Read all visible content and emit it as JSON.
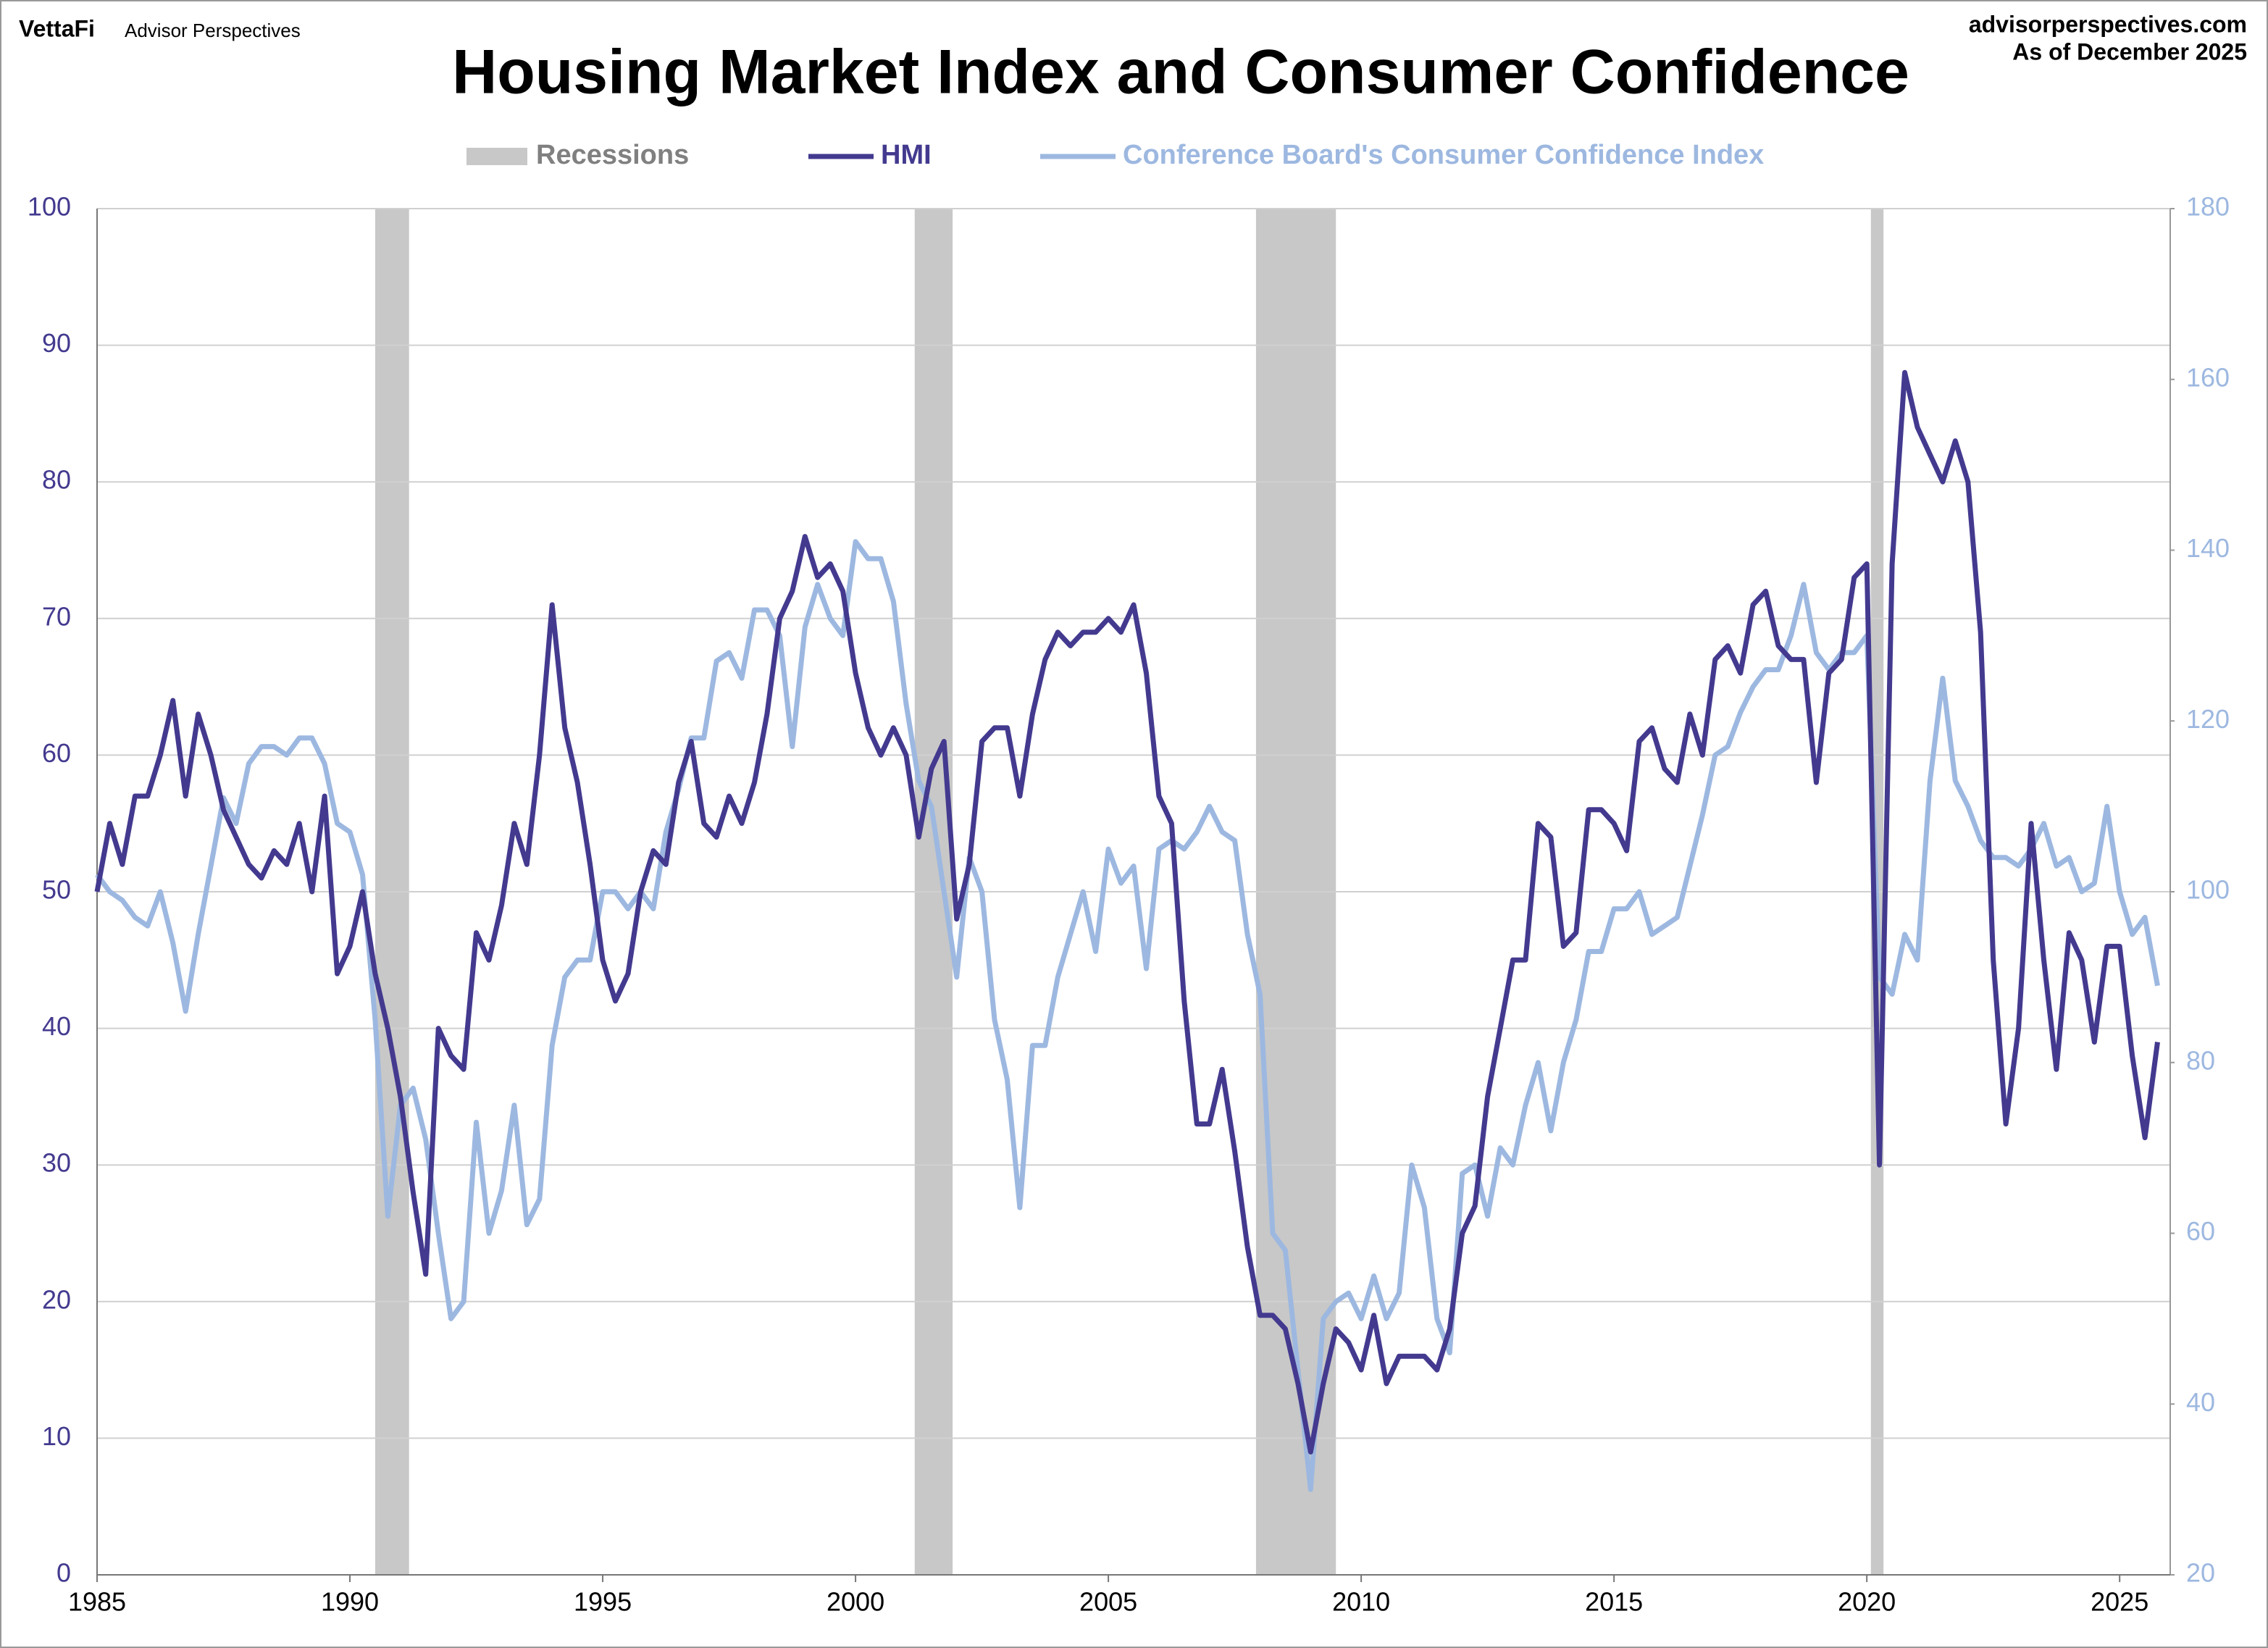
{
  "header": {
    "brand": "VettaFi",
    "sub_brand": "Advisor Perspectives",
    "site": "advisorperspectives.com",
    "date": "As of December 2025"
  },
  "chart_data": {
    "type": "line",
    "title": "Housing Market Index and Consumer Confidence",
    "xlim": [
      1985,
      2026
    ],
    "xticks": [
      1985,
      1990,
      1995,
      2000,
      2005,
      2010,
      2015,
      2020,
      2025
    ],
    "ylim": [
      0,
      100
    ],
    "yticks": [
      0,
      10,
      20,
      30,
      40,
      50,
      60,
      70,
      80,
      90,
      100
    ],
    "y2lim": [
      20,
      180
    ],
    "y2ticks": [
      20,
      40,
      60,
      80,
      100,
      120,
      140,
      160,
      180
    ],
    "grid": true,
    "recessions": {
      "name": "Recessions",
      "color": "#c8c8c8",
      "periods": [
        [
          1990.5,
          1991.17
        ],
        [
          2001.17,
          2001.92
        ],
        [
          2007.92,
          2009.5
        ],
        [
          2020.08,
          2020.33
        ]
      ]
    },
    "x": [
      1985,
      1985.25,
      1985.5,
      1985.75,
      1986,
      1986.25,
      1986.5,
      1986.75,
      1987,
      1987.25,
      1987.5,
      1987.75,
      1988,
      1988.25,
      1988.5,
      1988.75,
      1989,
      1989.25,
      1989.5,
      1989.75,
      1990,
      1990.25,
      1990.5,
      1990.75,
      1991,
      1991.25,
      1991.5,
      1991.75,
      1992,
      1992.25,
      1992.5,
      1992.75,
      1993,
      1993.25,
      1993.5,
      1993.75,
      1994,
      1994.25,
      1994.5,
      1994.75,
      1995,
      1995.25,
      1995.5,
      1995.75,
      1996,
      1996.25,
      1996.5,
      1996.75,
      1997,
      1997.25,
      1997.5,
      1997.75,
      1998,
      1998.25,
      1998.5,
      1998.75,
      1999,
      1999.25,
      1999.5,
      1999.75,
      2000,
      2000.25,
      2000.5,
      2000.75,
      2001,
      2001.25,
      2001.5,
      2001.75,
      2002,
      2002.25,
      2002.5,
      2002.75,
      2003,
      2003.25,
      2003.5,
      2003.75,
      2004,
      2004.25,
      2004.5,
      2004.75,
      2005,
      2005.25,
      2005.5,
      2005.75,
      2006,
      2006.25,
      2006.5,
      2006.75,
      2007,
      2007.25,
      2007.5,
      2007.75,
      2008,
      2008.25,
      2008.5,
      2008.75,
      2009,
      2009.25,
      2009.5,
      2009.75,
      2010,
      2010.25,
      2010.5,
      2010.75,
      2011,
      2011.25,
      2011.5,
      2011.75,
      2012,
      2012.25,
      2012.5,
      2012.75,
      2013,
      2013.25,
      2013.5,
      2013.75,
      2014,
      2014.25,
      2014.5,
      2014.75,
      2015,
      2015.25,
      2015.5,
      2015.75,
      2016,
      2016.25,
      2016.5,
      2016.75,
      2017,
      2017.25,
      2017.5,
      2017.75,
      2018,
      2018.25,
      2018.5,
      2018.75,
      2019,
      2019.25,
      2019.5,
      2019.75,
      2020,
      2020.25,
      2020.5,
      2020.75,
      2021,
      2021.25,
      2021.5,
      2021.75,
      2022,
      2022.25,
      2022.5,
      2022.75,
      2023,
      2023.25,
      2023.5,
      2023.75,
      2024,
      2024.25,
      2024.5,
      2024.75,
      2025,
      2025.25,
      2025.5,
      2025.75
    ],
    "series": [
      {
        "name": "HMI",
        "color": "#433a8f",
        "axis": "y",
        "values": [
          50,
          55,
          52,
          57,
          57,
          60,
          64,
          57,
          63,
          60,
          56,
          54,
          52,
          51,
          53,
          52,
          55,
          50,
          57,
          44,
          46,
          50,
          44,
          40,
          35,
          28,
          22,
          40,
          38,
          37,
          47,
          45,
          49,
          55,
          52,
          60,
          71,
          62,
          58,
          52,
          45,
          42,
          44,
          50,
          53,
          52,
          58,
          61,
          55,
          54,
          57,
          55,
          58,
          63,
          70,
          72,
          76,
          73,
          74,
          72,
          66,
          62,
          60,
          62,
          60,
          54,
          59,
          61,
          48,
          52,
          61,
          62,
          62,
          57,
          63,
          67,
          69,
          68,
          69,
          69,
          70,
          69,
          71,
          66,
          57,
          55,
          42,
          33,
          33,
          37,
          31,
          24,
          19,
          19,
          18,
          14,
          9,
          14,
          18,
          17,
          15,
          19,
          14,
          16,
          16,
          16,
          15,
          18,
          25,
          27,
          35,
          40,
          45,
          45,
          55,
          54,
          46,
          47,
          56,
          56,
          55,
          53,
          61,
          62,
          59,
          58,
          63,
          60,
          67,
          68,
          66,
          71,
          72,
          68,
          67,
          67,
          58,
          66,
          67,
          73,
          74,
          30,
          74,
          88,
          84,
          82,
          80,
          83,
          80,
          69,
          45,
          33,
          40,
          55,
          45,
          37,
          47,
          45,
          39,
          46,
          46,
          38,
          32,
          39
        ]
      },
      {
        "name": "Conference Board's Consumer Confidence Index",
        "color": "#9db8e0",
        "axis": "y2",
        "values": [
          102,
          100,
          99,
          97,
          96,
          100,
          94,
          86,
          95,
          103,
          111,
          108,
          115,
          117,
          117,
          116,
          118,
          118,
          115,
          108,
          107,
          102,
          85,
          62,
          75,
          77,
          71,
          60,
          50,
          52,
          73,
          60,
          65,
          75,
          61,
          64,
          82,
          90,
          92,
          92,
          100,
          100,
          98,
          100,
          98,
          107,
          112,
          118,
          118,
          127,
          128,
          125,
          133,
          133,
          130,
          117,
          131,
          136,
          132,
          130,
          141,
          139,
          139,
          134,
          122,
          113,
          110,
          100,
          90,
          104,
          100,
          85,
          78,
          63,
          82,
          82,
          90,
          95,
          100,
          93,
          105,
          101,
          103,
          91,
          105,
          106,
          105,
          107,
          110,
          107,
          106,
          95,
          88,
          60,
          58,
          44,
          30,
          50,
          52,
          53,
          50,
          55,
          50,
          53,
          68,
          63,
          50,
          46,
          67,
          68,
          62,
          70,
          68,
          75,
          80,
          72,
          80,
          85,
          93,
          93,
          98,
          98,
          100,
          95,
          96,
          97,
          103,
          109,
          116,
          117,
          121,
          124,
          126,
          126,
          130,
          136,
          128,
          126,
          128,
          128,
          130,
          90,
          88,
          95,
          92,
          113,
          125,
          113,
          110,
          106,
          104,
          104,
          103,
          105,
          108,
          103,
          104,
          100,
          101,
          110,
          100,
          95,
          97,
          89
        ]
      }
    ]
  }
}
